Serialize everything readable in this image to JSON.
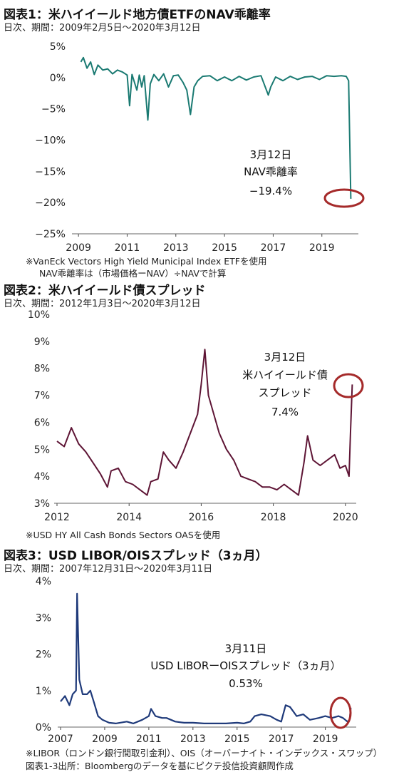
{
  "charts": [
    {
      "title": "図表1：米ハイイールド地方債ETFのNAV乖離率",
      "subtitle": "日次、期間：2009年2月5日～2020年3月12日",
      "notes": [
        "※VanEck Vectors High Yield Municipal Index ETFを使用",
        "NAV乖離率は（市場価格ーNAV）÷NAVで計算"
      ],
      "annotation": [
        "3月12日",
        "NAV乖離率",
        "−19.4%"
      ]
    },
    {
      "title": "図表2：米ハイイールド債スプレッド",
      "subtitle": "日次、期間：2012年1月3日～2020年3月12日",
      "notes": [
        "※USD HY All Cash Bonds Sectors OASを使用"
      ],
      "annotation": [
        "3月12日",
        "米ハイイールド債",
        "スプレッド",
        "7.4%"
      ]
    },
    {
      "title": "図表3：USD LIBOR/OISスプレッド（3ヵ月）",
      "subtitle": "日次、期間：2007年12月31日～2020年3月11日",
      "notes": [
        "※LIBOR（ロンドン銀行間取引金利）、OIS（オーバーナイト・インデックス・スワップ）"
      ],
      "annotation": [
        "3月11日",
        "USD LIBORーOISスプレッド（3ヵ月）",
        "0.53%"
      ]
    }
  ],
  "source": "図表1-3出所：Bloombergのデータを基にピクテ投信投資顧問作成",
  "chart_data": [
    {
      "type": "line",
      "series": [
        {
          "values": [
            [
              2009.1,
              2.5
            ],
            [
              2009.2,
              3.2
            ],
            [
              2009.35,
              1.5
            ],
            [
              2009.5,
              2.5
            ],
            [
              2009.65,
              0.5
            ],
            [
              2009.8,
              2.0
            ],
            [
              2010.0,
              1.2
            ],
            [
              2010.2,
              1.4
            ],
            [
              2010.4,
              0.6
            ],
            [
              2010.6,
              1.2
            ],
            [
              2010.8,
              0.9
            ],
            [
              2011.0,
              0.4
            ],
            [
              2011.1,
              -4.5
            ],
            [
              2011.2,
              0.5
            ],
            [
              2011.4,
              -2.0
            ],
            [
              2011.5,
              0.4
            ],
            [
              2011.6,
              -1.5
            ],
            [
              2011.7,
              0.3
            ],
            [
              2011.85,
              -6.8
            ],
            [
              2011.95,
              -1.0
            ],
            [
              2012.1,
              0.5
            ],
            [
              2012.3,
              -0.5
            ],
            [
              2012.5,
              0.6
            ],
            [
              2012.7,
              -1.5
            ],
            [
              2012.9,
              0.3
            ],
            [
              2013.1,
              0.4
            ],
            [
              2013.3,
              -0.8
            ],
            [
              2013.45,
              -2.0
            ],
            [
              2013.6,
              -5.9
            ],
            [
              2013.75,
              -1.5
            ],
            [
              2013.9,
              -0.5
            ],
            [
              2014.1,
              0.2
            ],
            [
              2014.4,
              0.3
            ],
            [
              2014.7,
              -0.5
            ],
            [
              2015.0,
              0.1
            ],
            [
              2015.3,
              -0.5
            ],
            [
              2015.6,
              0.2
            ],
            [
              2015.9,
              -0.4
            ],
            [
              2016.2,
              0.1
            ],
            [
              2016.5,
              0.3
            ],
            [
              2016.8,
              -2.8
            ],
            [
              2016.9,
              -1.5
            ],
            [
              2017.1,
              0.1
            ],
            [
              2017.4,
              -0.5
            ],
            [
              2017.7,
              0.2
            ],
            [
              2018.0,
              -0.3
            ],
            [
              2018.3,
              0.1
            ],
            [
              2018.6,
              0.2
            ],
            [
              2018.9,
              -0.3
            ],
            [
              2019.2,
              0.3
            ],
            [
              2019.5,
              0.2
            ],
            [
              2019.8,
              0.3
            ],
            [
              2020.0,
              0.2
            ],
            [
              2020.1,
              -0.5
            ],
            [
              2020.19,
              -19.4
            ]
          ]
        }
      ],
      "xlim": [
        2008.85,
        2020.5
      ],
      "ylim": [
        -25,
        5
      ],
      "x_ticks": [
        {
          "value": 2009,
          "label": "2009"
        },
        {
          "value": 2011,
          "label": "2011"
        },
        {
          "value": 2013,
          "label": "2013"
        },
        {
          "value": 2015,
          "label": "2015"
        },
        {
          "value": 2017,
          "label": "2017"
        },
        {
          "value": 2019,
          "label": "2019"
        }
      ],
      "y_ticks": [
        {
          "value": 5,
          "label": "5%"
        },
        {
          "value": 0,
          "label": "0%"
        },
        {
          "value": -5,
          "label": "−5%"
        },
        {
          "value": -10,
          "label": "−10%"
        },
        {
          "value": -15,
          "label": "−15%"
        },
        {
          "value": -20,
          "label": "−20%"
        },
        {
          "value": -25,
          "label": "−25%"
        }
      ],
      "grid": false,
      "colors": {
        "line": "#1a7a72",
        "highlight": "#a52a2a"
      }
    },
    {
      "type": "line",
      "series": [
        {
          "values": [
            [
              2012.0,
              5.3
            ],
            [
              2012.2,
              5.1
            ],
            [
              2012.4,
              5.8
            ],
            [
              2012.6,
              5.2
            ],
            [
              2012.8,
              4.9
            ],
            [
              2013.0,
              4.5
            ],
            [
              2013.2,
              4.1
            ],
            [
              2013.4,
              3.6
            ],
            [
              2013.5,
              4.2
            ],
            [
              2013.7,
              4.3
            ],
            [
              2013.9,
              3.8
            ],
            [
              2014.1,
              3.7
            ],
            [
              2014.3,
              3.5
            ],
            [
              2014.5,
              3.3
            ],
            [
              2014.6,
              3.8
            ],
            [
              2014.8,
              3.9
            ],
            [
              2014.95,
              4.9
            ],
            [
              2015.1,
              4.6
            ],
            [
              2015.3,
              4.3
            ],
            [
              2015.5,
              4.9
            ],
            [
              2015.7,
              5.6
            ],
            [
              2015.9,
              6.3
            ],
            [
              2016.0,
              7.4
            ],
            [
              2016.1,
              8.7
            ],
            [
              2016.2,
              7.0
            ],
            [
              2016.35,
              6.3
            ],
            [
              2016.5,
              5.6
            ],
            [
              2016.7,
              5.0
            ],
            [
              2016.9,
              4.6
            ],
            [
              2017.1,
              4.0
            ],
            [
              2017.3,
              3.9
            ],
            [
              2017.5,
              3.8
            ],
            [
              2017.7,
              3.6
            ],
            [
              2017.9,
              3.6
            ],
            [
              2018.1,
              3.5
            ],
            [
              2018.3,
              3.7
            ],
            [
              2018.5,
              3.5
            ],
            [
              2018.7,
              3.3
            ],
            [
              2018.85,
              4.5
            ],
            [
              2018.95,
              5.5
            ],
            [
              2019.1,
              4.6
            ],
            [
              2019.3,
              4.4
            ],
            [
              2019.5,
              4.6
            ],
            [
              2019.7,
              4.8
            ],
            [
              2019.85,
              4.3
            ],
            [
              2020.0,
              4.4
            ],
            [
              2020.1,
              4.0
            ],
            [
              2020.14,
              5.6
            ],
            [
              2020.19,
              7.4
            ]
          ]
        }
      ],
      "xlim": [
        2012,
        2020.3
      ],
      "ylim": [
        3,
        10
      ],
      "x_ticks": [
        {
          "value": 2012,
          "label": "2012"
        },
        {
          "value": 2014,
          "label": "2014"
        },
        {
          "value": 2016,
          "label": "2016"
        },
        {
          "value": 2018,
          "label": "2018"
        },
        {
          "value": 2020,
          "label": "2020"
        }
      ],
      "y_ticks": [
        {
          "value": 10,
          "label": "10%"
        },
        {
          "value": 9,
          "label": "9%"
        },
        {
          "value": 8,
          "label": "8%"
        },
        {
          "value": 7,
          "label": "7%"
        },
        {
          "value": 6,
          "label": "6%"
        },
        {
          "value": 5,
          "label": "5%"
        },
        {
          "value": 4,
          "label": "4%"
        },
        {
          "value": 3,
          "label": "3%"
        }
      ],
      "grid": false,
      "colors": {
        "line": "#5e1535",
        "highlight": "#a52a2a"
      }
    },
    {
      "type": "line",
      "series": [
        {
          "values": [
            [
              2007.0,
              0.7
            ],
            [
              2007.2,
              0.85
            ],
            [
              2007.4,
              0.6
            ],
            [
              2007.55,
              0.9
            ],
            [
              2007.7,
              1.0
            ],
            [
              2007.75,
              3.65
            ],
            [
              2007.85,
              1.3
            ],
            [
              2008.0,
              0.9
            ],
            [
              2008.2,
              0.9
            ],
            [
              2008.35,
              1.0
            ],
            [
              2008.5,
              0.7
            ],
            [
              2008.7,
              0.3
            ],
            [
              2008.9,
              0.2
            ],
            [
              2009.2,
              0.12
            ],
            [
              2009.5,
              0.1
            ],
            [
              2010.0,
              0.15
            ],
            [
              2010.3,
              0.1
            ],
            [
              2010.7,
              0.2
            ],
            [
              2011.0,
              0.3
            ],
            [
              2011.1,
              0.5
            ],
            [
              2011.3,
              0.3
            ],
            [
              2011.6,
              0.25
            ],
            [
              2011.8,
              0.25
            ],
            [
              2012.2,
              0.15
            ],
            [
              2012.6,
              0.12
            ],
            [
              2013.0,
              0.12
            ],
            [
              2013.5,
              0.1
            ],
            [
              2014.0,
              0.1
            ],
            [
              2014.5,
              0.1
            ],
            [
              2015.0,
              0.12
            ],
            [
              2015.3,
              0.1
            ],
            [
              2015.6,
              0.15
            ],
            [
              2015.8,
              0.3
            ],
            [
              2016.1,
              0.35
            ],
            [
              2016.5,
              0.3
            ],
            [
              2016.8,
              0.2
            ],
            [
              2017.0,
              0.15
            ],
            [
              2017.2,
              0.6
            ],
            [
              2017.4,
              0.55
            ],
            [
              2017.7,
              0.3
            ],
            [
              2018.0,
              0.35
            ],
            [
              2018.3,
              0.2
            ],
            [
              2018.7,
              0.25
            ],
            [
              2019.0,
              0.3
            ],
            [
              2019.3,
              0.25
            ],
            [
              2019.6,
              0.3
            ],
            [
              2019.8,
              0.25
            ],
            [
              2020.0,
              0.15
            ],
            [
              2020.1,
              0.2
            ],
            [
              2020.15,
              0.53
            ]
          ]
        }
      ],
      "xlim": [
        2007,
        2020.4
      ],
      "ylim": [
        0,
        4
      ],
      "x_ticks": [
        {
          "value": 2007,
          "label": "2007"
        },
        {
          "value": 2009,
          "label": "2009"
        },
        {
          "value": 2011,
          "label": "2011"
        },
        {
          "value": 2013,
          "label": "2013"
        },
        {
          "value": 2015,
          "label": "2015"
        },
        {
          "value": 2017,
          "label": "2017"
        },
        {
          "value": 2019,
          "label": "2019"
        }
      ],
      "y_ticks": [
        {
          "value": 4,
          "label": "4%"
        },
        {
          "value": 3,
          "label": "3%"
        },
        {
          "value": 2,
          "label": "2%"
        },
        {
          "value": 1,
          "label": "1%"
        },
        {
          "value": 0,
          "label": "0%"
        }
      ],
      "grid": false,
      "colors": {
        "line": "#1f3a7a",
        "highlight": "#a52a2a"
      }
    }
  ]
}
